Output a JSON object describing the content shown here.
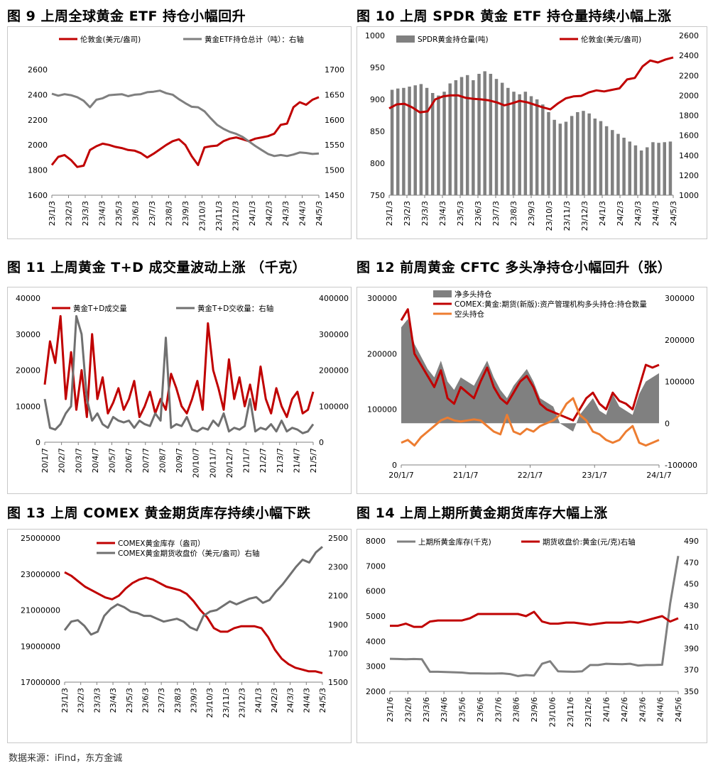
{
  "source": "数据来源：iFind，东方金诚",
  "chart_data": [
    {
      "id": "c9",
      "type": "line",
      "title": "图 9  上周全球黄金 ETF 持仓小幅回升",
      "x_ticks": [
        "23/1/3",
        "23/2/3",
        "23/3/3",
        "23/4/3",
        "23/5/3",
        "23/6/3",
        "23/7/3",
        "23/8/3",
        "23/9/3",
        "23/10/3",
        "23/11/3",
        "23/12/3",
        "24/1/3",
        "24/2/3",
        "24/3/3",
        "24/4/3",
        "24/5/3"
      ],
      "y_left": {
        "min": 1600,
        "max": 2600,
        "ticks": [
          1600,
          1800,
          2000,
          2200,
          2400,
          2600
        ]
      },
      "y_right": {
        "min": 1450,
        "max": 1700,
        "ticks": [
          1450,
          1500,
          1550,
          1600,
          1650,
          1700
        ]
      },
      "series": [
        {
          "name": "伦敦金(美元/盎司)",
          "axis": "left",
          "color": "#c00000",
          "width": 3,
          "values": [
            1840,
            1905,
            1920,
            1880,
            1825,
            1835,
            1960,
            1990,
            2010,
            2000,
            1985,
            1975,
            1960,
            1955,
            1935,
            1900,
            1930,
            1965,
            2000,
            2030,
            2045,
            2000,
            1910,
            1840,
            1980,
            1990,
            1995,
            2030,
            2050,
            2060,
            2045,
            2030,
            2050,
            2060,
            2070,
            2090,
            2160,
            2170,
            2300,
            2340,
            2320,
            2360,
            2380
          ]
        },
        {
          "name": "黄金ETF持仓总计（吨）：右轴",
          "axis": "right",
          "color": "#7f7f7f",
          "width": 3,
          "values": [
            1652,
            1648,
            1651,
            1649,
            1645,
            1638,
            1625,
            1640,
            1643,
            1649,
            1650,
            1651,
            1647,
            1650,
            1651,
            1655,
            1656,
            1658,
            1653,
            1650,
            1641,
            1633,
            1626,
            1625,
            1617,
            1603,
            1590,
            1582,
            1576,
            1572,
            1566,
            1557,
            1548,
            1540,
            1532,
            1528,
            1530,
            1528,
            1531,
            1535,
            1534,
            1532,
            1533
          ]
        }
      ]
    },
    {
      "id": "c10",
      "type": "bar+line",
      "title": "图 10  上周 SPDR 黄金 ETF 持仓量持续小幅上涨",
      "x_ticks": [
        "23/1/3",
        "23/2/3",
        "23/3/3",
        "23/4/3",
        "23/5/3",
        "23/6/3",
        "23/7/3",
        "23/8/3",
        "23/9/3",
        "23/10/3",
        "23/11/3",
        "23/12/3",
        "24/1/3",
        "24/2/3",
        "24/3/3",
        "24/4/3",
        "24/5/3"
      ],
      "y_left": {
        "min": 750,
        "max": 1000,
        "ticks": [
          750,
          800,
          850,
          900,
          950,
          1000
        ]
      },
      "y_right": {
        "min": 1000,
        "max": 2600,
        "ticks": [
          1000,
          1200,
          1400,
          1600,
          1800,
          2000,
          2200,
          2400,
          2600
        ]
      },
      "series": [
        {
          "name": "SPDR黄金持仓量(吨)",
          "axis": "left",
          "kind": "bar",
          "color": "#808080",
          "values": [
            915,
            917,
            918,
            920,
            922,
            924,
            918,
            910,
            906,
            912,
            925,
            930,
            935,
            938,
            930,
            940,
            944,
            940,
            932,
            926,
            918,
            912,
            908,
            912,
            905,
            900,
            892,
            880,
            868,
            862,
            865,
            874,
            880,
            882,
            878,
            870,
            866,
            858,
            852,
            846,
            840,
            834,
            828,
            820,
            825,
            833,
            832,
            833,
            834
          ]
        },
        {
          "name": "伦敦金(美元/盎司)",
          "axis": "right",
          "kind": "line",
          "color": "#c00000",
          "width": 3,
          "values": [
            1870,
            1910,
            1915,
            1880,
            1830,
            1840,
            1960,
            1990,
            2000,
            2000,
            1975,
            1965,
            1960,
            1950,
            1930,
            1900,
            1920,
            1945,
            1930,
            1905,
            1880,
            1860,
            1920,
            1970,
            1990,
            1995,
            2030,
            2050,
            2040,
            2055,
            2070,
            2160,
            2175,
            2290,
            2350,
            2330,
            2360,
            2380
          ]
        }
      ]
    },
    {
      "id": "c11",
      "type": "line",
      "title": "图 11  上周黄金 T+D 成交量波动上涨  （千克）",
      "x_ticks": [
        "20/1/7",
        "20/2/7",
        "20/3/7",
        "20/4/7",
        "20/5/7",
        "20/6/7",
        "20/7/7",
        "20/8/7",
        "20/9/7",
        "20/10/7",
        "20/11/7",
        "20/12/7",
        "21/1/7",
        "21/2/7",
        "21/3/7",
        "21/4/7",
        "21/5/7"
      ],
      "y_left": {
        "min": 0,
        "max": 40000,
        "ticks": [
          0,
          10000,
          20000,
          30000,
          40000
        ]
      },
      "y_right": {
        "min": 0,
        "max": 400000,
        "ticks": [
          0,
          100000,
          200000,
          300000,
          400000
        ]
      },
      "series": [
        {
          "name": "黄金T+D成交量",
          "axis": "left",
          "color": "#c00000",
          "width": 3,
          "values": [
            16000,
            28000,
            22000,
            35000,
            12000,
            25000,
            9000,
            20000,
            7000,
            30000,
            12000,
            18000,
            8000,
            11000,
            15000,
            9000,
            12000,
            17000,
            7000,
            10000,
            14000,
            8000,
            12000,
            9000,
            19000,
            15000,
            10000,
            8000,
            12000,
            17000,
            9000,
            33000,
            20000,
            15000,
            9000,
            23000,
            12000,
            18000,
            10000,
            16000,
            9000,
            21000,
            12000,
            8000,
            15000,
            10000,
            7000,
            12000,
            14000,
            8000,
            9000,
            14000
          ]
        },
        {
          "name": "黄金T+D交收量：右轴",
          "axis": "right",
          "color": "#707070",
          "width": 3,
          "values": [
            120000,
            40000,
            35000,
            50000,
            80000,
            100000,
            350000,
            300000,
            120000,
            60000,
            80000,
            50000,
            40000,
            70000,
            60000,
            55000,
            60000,
            40000,
            60000,
            50000,
            45000,
            80000,
            60000,
            290000,
            40000,
            50000,
            45000,
            70000,
            35000,
            30000,
            40000,
            35000,
            60000,
            45000,
            80000,
            30000,
            40000,
            35000,
            45000,
            120000,
            30000,
            40000,
            35000,
            50000,
            30000,
            60000,
            30000,
            40000,
            35000,
            25000,
            30000,
            50000
          ]
        }
      ]
    },
    {
      "id": "c12",
      "type": "area+line",
      "title": "图 12  前周黄金 CFTC 多头净持仓小幅回升（张）",
      "x_ticks": [
        "20/1/7",
        "21/1/7",
        "22/1/7",
        "23/1/7",
        "24/1/7"
      ],
      "y_left": {
        "min": 0,
        "max": 300000,
        "ticks": [
          0,
          100000,
          200000,
          300000
        ]
      },
      "y_right": {
        "min": -100000,
        "max": 300000,
        "ticks": [
          -100000,
          0,
          100000,
          200000,
          300000
        ]
      },
      "series": [
        {
          "name": "净多头持仓",
          "axis": "right",
          "kind": "area",
          "color": "#808080",
          "values": [
            230000,
            250000,
            190000,
            160000,
            130000,
            110000,
            150000,
            100000,
            80000,
            110000,
            100000,
            90000,
            120000,
            150000,
            110000,
            80000,
            60000,
            90000,
            110000,
            130000,
            100000,
            60000,
            50000,
            40000,
            0,
            -10000,
            -20000,
            20000,
            40000,
            60000,
            30000,
            20000,
            70000,
            40000,
            30000,
            20000,
            70000,
            100000,
            110000,
            120000
          ]
        },
        {
          "name": "COMEX:黄金:期货(新版):资产管理机构多头持仓:持仓数量",
          "axis": "left",
          "kind": "line",
          "color": "#c00000",
          "width": 3,
          "values": [
            260000,
            280000,
            200000,
            180000,
            160000,
            140000,
            170000,
            120000,
            110000,
            140000,
            130000,
            120000,
            150000,
            175000,
            140000,
            120000,
            110000,
            130000,
            150000,
            160000,
            140000,
            110000,
            100000,
            95000,
            90000,
            85000,
            80000,
            100000,
            120000,
            130000,
            110000,
            100000,
            130000,
            115000,
            110000,
            100000,
            140000,
            180000,
            175000,
            180000
          ]
        },
        {
          "name": "空头持仓",
          "axis": "left",
          "kind": "line",
          "color": "#ed7d31",
          "width": 3,
          "values": [
            40000,
            45000,
            35000,
            50000,
            60000,
            70000,
            80000,
            85000,
            80000,
            78000,
            80000,
            82000,
            80000,
            70000,
            60000,
            55000,
            90000,
            60000,
            55000,
            65000,
            60000,
            70000,
            75000,
            80000,
            90000,
            110000,
            120000,
            90000,
            80000,
            60000,
            55000,
            45000,
            40000,
            45000,
            60000,
            70000,
            40000,
            35000,
            40000,
            45000
          ]
        }
      ]
    },
    {
      "id": "c13",
      "type": "line",
      "title": "图 13  上周 COMEX 黄金期货库存持续小幅下跌",
      "x_ticks": [
        "23/1/3",
        "23/2/3",
        "23/3/3",
        "23/4/3",
        "23/5/3",
        "23/6/3",
        "23/7/3",
        "23/8/3",
        "23/9/3",
        "23/10/3",
        "23/11/3",
        "23/12/3",
        "24/1/3",
        "24/2/3",
        "24/3/3",
        "24/4/3",
        "24/5/3"
      ],
      "y_left": {
        "min": 17000000,
        "max": 25000000,
        "ticks": [
          17000000,
          19000000,
          21000000,
          23000000,
          25000000
        ]
      },
      "y_right": {
        "min": 1500,
        "max": 2500,
        "ticks": [
          1500,
          1700,
          1900,
          2100,
          2300,
          2500
        ]
      },
      "series": [
        {
          "name": "COMEX黄金库存（盎司）",
          "axis": "left",
          "color": "#c00000",
          "width": 3,
          "values": [
            23100000,
            22900000,
            22600000,
            22300000,
            22100000,
            21900000,
            21700000,
            21600000,
            21800000,
            22200000,
            22500000,
            22700000,
            22800000,
            22700000,
            22500000,
            22300000,
            22200000,
            22100000,
            21900000,
            21500000,
            21000000,
            20600000,
            20000000,
            19800000,
            19800000,
            20000000,
            20100000,
            20100000,
            20100000,
            20000000,
            19500000,
            18800000,
            18300000,
            18000000,
            17800000,
            17700000,
            17600000,
            17600000,
            17500000
          ]
        },
        {
          "name": "COMEX黄金期货收盘价（美元/盎司）右轴",
          "axis": "right",
          "color": "#707070",
          "width": 3,
          "values": [
            1860,
            1920,
            1930,
            1890,
            1830,
            1850,
            1960,
            2010,
            2040,
            2020,
            1990,
            1980,
            1960,
            1960,
            1940,
            1920,
            1930,
            1940,
            1920,
            1880,
            1860,
            1960,
            1990,
            2000,
            2030,
            2060,
            2040,
            2060,
            2080,
            2090,
            2050,
            2070,
            2130,
            2180,
            2240,
            2300,
            2350,
            2330,
            2400,
            2440
          ]
        }
      ]
    },
    {
      "id": "c14",
      "type": "line",
      "title": "图 14  上周上期所黄金期货库存大幅上涨",
      "x_ticks": [
        "23/1/6",
        "23/2/6",
        "23/3/6",
        "23/4/6",
        "23/5/6",
        "23/6/6",
        "23/7/6",
        "23/8/6",
        "23/9/6",
        "23/10/6",
        "23/11/6",
        "23/12/6",
        "24/1/6",
        "24/2/6",
        "24/3/6",
        "24/4/6",
        "24/5/6"
      ],
      "y_left": {
        "min": 2000,
        "max": 8000,
        "ticks": [
          2000,
          3000,
          4000,
          5000,
          6000,
          7000,
          8000
        ]
      },
      "y_right": {
        "min": 350,
        "max": 490,
        "ticks": [
          350,
          370,
          390,
          410,
          430,
          450,
          470,
          490
        ]
      },
      "series": [
        {
          "name": "上期所黄金库存(千克)",
          "axis": "left",
          "color": "#808080",
          "width": 3,
          "values": [
            3300,
            3290,
            3280,
            3290,
            3280,
            2780,
            2780,
            2770,
            2760,
            2750,
            2720,
            2720,
            2710,
            2710,
            2720,
            2690,
            2610,
            2650,
            2630,
            3100,
            3200,
            2800,
            2790,
            2780,
            2800,
            3050,
            3050,
            3100,
            3090,
            3080,
            3100,
            3030,
            3050,
            3050,
            3060,
            5500,
            7400
          ]
        },
        {
          "name": "期货收盘价:黄金(元/克)右轴",
          "axis": "right",
          "color": "#c00000",
          "width": 3,
          "values": [
            411,
            411,
            413,
            410,
            410,
            415,
            416,
            416,
            416,
            416,
            418,
            422,
            422,
            422,
            422,
            422,
            422,
            420,
            424,
            415,
            413,
            413,
            414,
            414,
            413,
            412,
            413,
            414,
            414,
            414,
            415,
            414,
            416,
            418,
            420,
            415,
            418
          ]
        }
      ]
    }
  ]
}
